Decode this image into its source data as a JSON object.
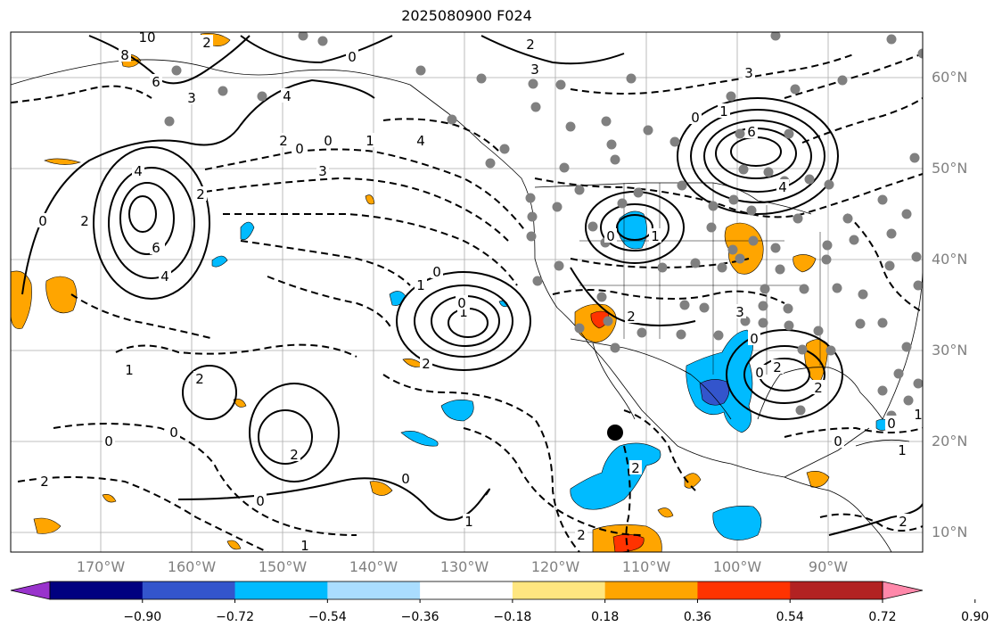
{
  "title": "2025080900 F024",
  "latitude_labels": [
    "60°N",
    "50°N",
    "40°N",
    "30°N",
    "20°N",
    "10°N"
  ],
  "longitude_labels": [
    "170°W",
    "160°W",
    "150°W",
    "140°W",
    "130°W",
    "120°W",
    "110°W",
    "100°W",
    "90°W"
  ],
  "colorbar": {
    "tick_labels": [
      "−0.90",
      "−0.72",
      "−0.54",
      "−0.36",
      "−0.18",
      "0.18",
      "0.36",
      "0.54",
      "0.72",
      "0.90"
    ],
    "colors": [
      "#9933cc",
      "#000080",
      "#3355cc",
      "#00bbff",
      "#aaddff",
      "#ffffff",
      "#ffe680",
      "#ffa500",
      "#ff3300",
      "#b22222",
      "#ff88aa"
    ]
  },
  "contour_labels": [
    "10",
    "8",
    "6",
    "4",
    "3",
    "2",
    "2",
    "4",
    "3",
    "1",
    "0",
    "3",
    "6",
    "4",
    "3",
    "1",
    "0",
    "2",
    "0",
    "1",
    "0",
    "2",
    "0",
    "2",
    "3",
    "4",
    "2",
    "0",
    "3",
    "6",
    "4",
    "2",
    "0",
    "0",
    "2",
    "1",
    "0",
    "1",
    "2",
    "0",
    "2",
    "2",
    "1",
    "0",
    "2",
    "0",
    "0",
    "1",
    "0",
    "1",
    "2",
    "2",
    "1",
    "0",
    "2",
    "0",
    "1"
  ],
  "marker": {
    "lon": -113,
    "lat": 21
  }
}
